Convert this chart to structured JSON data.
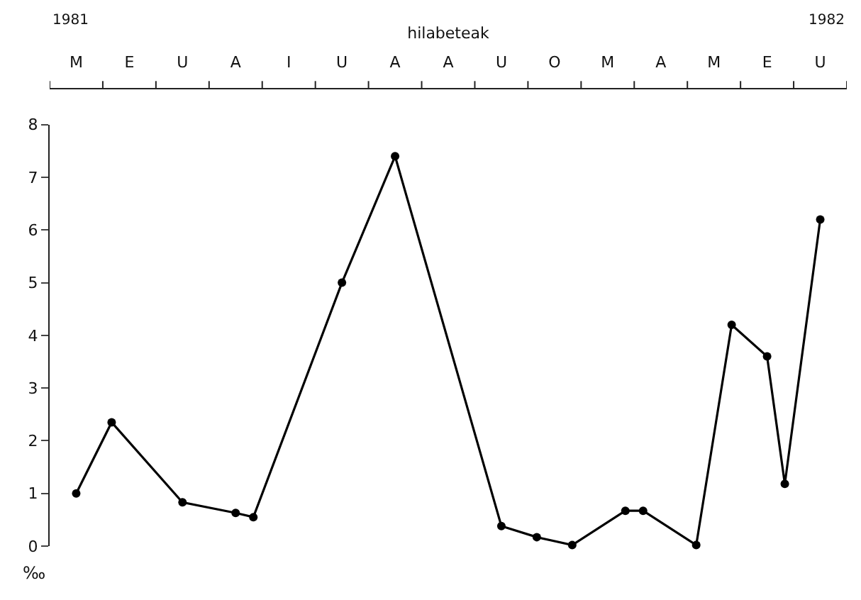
{
  "chart_data": {
    "type": "line",
    "xlabel": "hilabeteak",
    "ylabel": "‰",
    "annotations": [
      "1981",
      "1982"
    ],
    "categories": [
      null,
      "M",
      null,
      null,
      "E",
      null,
      null,
      "U",
      null,
      null,
      "A",
      null,
      null,
      "I",
      null,
      null,
      "U",
      null,
      null,
      "A",
      null,
      null,
      "A",
      null,
      null,
      "U",
      null,
      null,
      "O",
      null,
      null,
      "M",
      null,
      null,
      "A",
      null,
      null,
      "M",
      null,
      null,
      "E",
      null,
      null,
      "U",
      null
    ],
    "ylim": [
      0,
      8
    ],
    "yticks": [
      0,
      1,
      2,
      3,
      4,
      5,
      6,
      7,
      8
    ],
    "marker": "circle",
    "line_style": "solid",
    "series": [
      {
        "color": "#000000",
        "values": [
          null,
          1.0,
          null,
          2.35,
          null,
          null,
          null,
          0.83,
          null,
          null,
          0.63,
          0.55,
          null,
          null,
          null,
          null,
          5.0,
          null,
          null,
          7.4,
          null,
          null,
          null,
          null,
          null,
          0.38,
          null,
          0.17,
          null,
          0.02,
          null,
          null,
          0.67,
          0.67,
          null,
          null,
          0.02,
          null,
          4.2,
          null,
          3.6,
          1.18,
          null,
          6.2,
          null
        ]
      }
    ]
  }
}
